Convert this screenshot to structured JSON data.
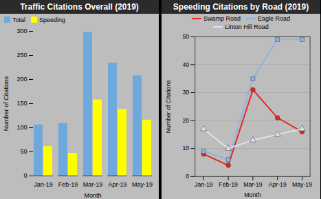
{
  "chart_data": [
    {
      "type": "bar",
      "title": "Traffic Citations Overall (2019)",
      "xlabel": "Month",
      "ylabel": "Number of Citations",
      "categories": [
        "Jan-19",
        "Feb-19",
        "Mar-19",
        "Apr-19",
        "May-19"
      ],
      "series": [
        {
          "name": "Total",
          "color": "#6fa8dc",
          "values": [
            106,
            109,
            298,
            234,
            208
          ]
        },
        {
          "name": "Speeding",
          "color": "#ffff00",
          "values": [
            61,
            47,
            158,
            138,
            116
          ]
        }
      ],
      "ylim": [
        0,
        300
      ],
      "yticks": [
        0,
        50,
        100,
        150,
        200,
        250,
        300
      ],
      "grid": false,
      "legend": "top-left"
    },
    {
      "type": "line",
      "title": "Speeding Citations by Road (2019)",
      "xlabel": "Month",
      "ylabel": "Number of Citations",
      "categories": [
        "Jan-19",
        "Feb-19",
        "Mar-19",
        "Apr-19",
        "May-19"
      ],
      "series": [
        {
          "name": "Swamp Road",
          "color": "#e8231c",
          "marker": "circle",
          "values": [
            8,
            4,
            31,
            21,
            16
          ]
        },
        {
          "name": "Eagle Road",
          "color": "#8db3e2",
          "marker": "square",
          "values": [
            9,
            6,
            35,
            49,
            49
          ]
        },
        {
          "name": "Linton Hill Road",
          "color": "#dde3ee",
          "marker": "triangle",
          "values": [
            17,
            10,
            13,
            15,
            17
          ]
        }
      ],
      "ylim": [
        0,
        50
      ],
      "yticks": [
        0,
        10,
        20,
        30,
        40,
        50
      ],
      "grid": true,
      "legend": "top"
    }
  ]
}
